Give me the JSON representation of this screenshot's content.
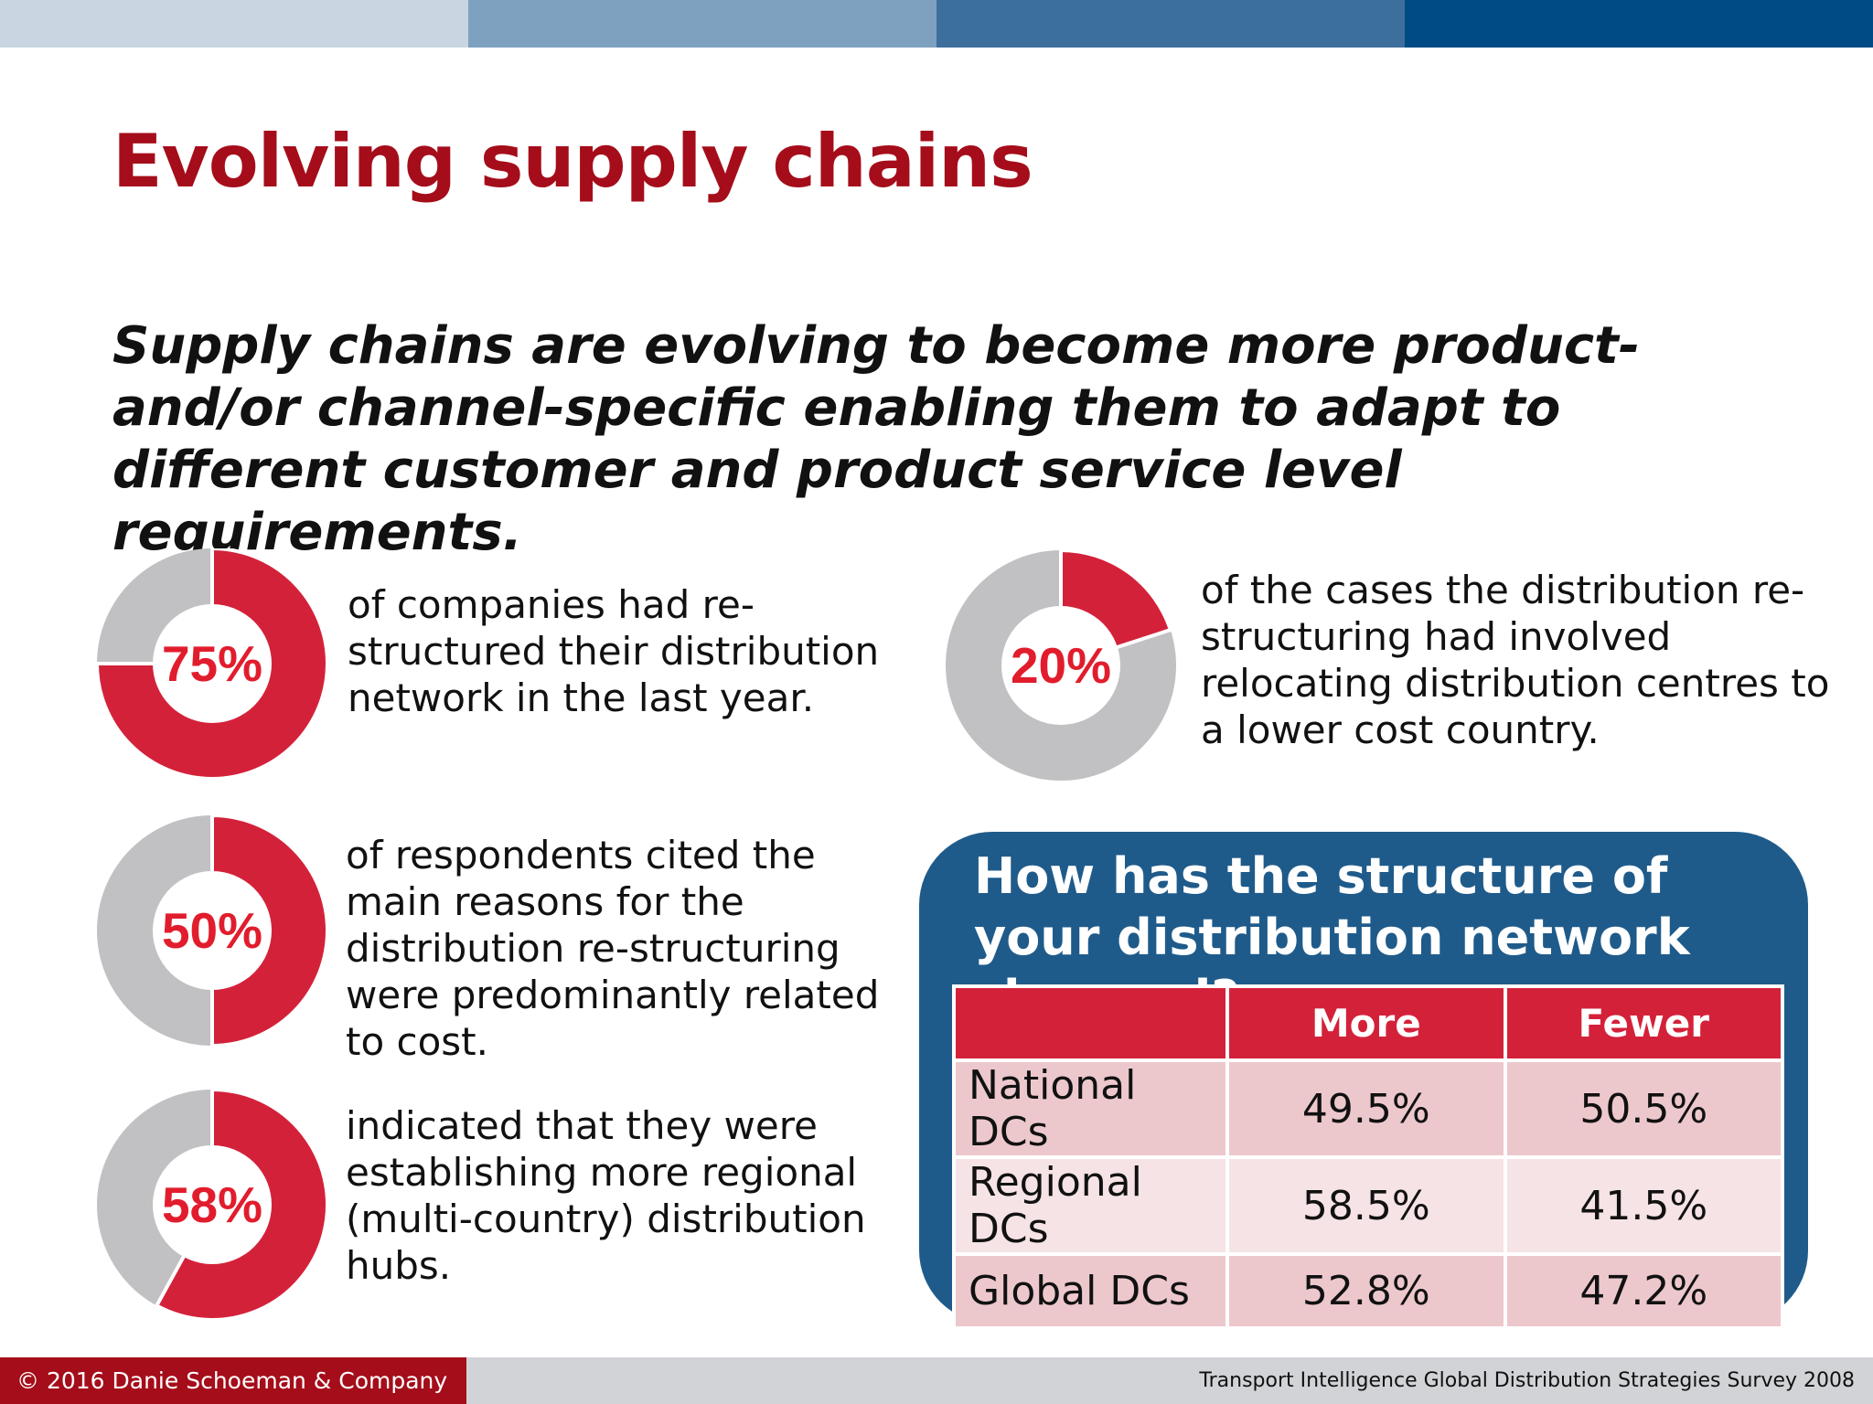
{
  "title": "Evolving supply chains",
  "subtitle": "Supply chains are evolving to become more product- and/or channel-specific enabling them to adapt to different customer and product service level requirements.",
  "colors": {
    "accent_red": "#d4213a",
    "donut_grey": "#c1c0c3",
    "title_red": "#a50d1a",
    "panel_blue": "#1f5b8a"
  },
  "stats": [
    {
      "label": "75%",
      "value": 75,
      "text": "of companies had re-structured their distribution network in the last year."
    },
    {
      "label": "20%",
      "value": 20,
      "text": "of the cases the distribution re-structuring had involved relocating distribution centres to a lower cost country."
    },
    {
      "label": "50%",
      "value": 50,
      "text": "of respondents cited the main reasons for the distribution re-structuring were predominantly related to cost."
    },
    {
      "label": "58%",
      "value": 58,
      "text": "indicated that they were establishing more regional (multi-country) distribution hubs."
    }
  ],
  "panel": {
    "title": "How has the structure of your distribution network changed?",
    "headers": [
      "",
      "More",
      "Fewer"
    ],
    "rows": [
      {
        "label": "National DCs",
        "more": "49.5%",
        "fewer": "50.5%"
      },
      {
        "label": "Regional DCs",
        "more": "58.5%",
        "fewer": "41.5%"
      },
      {
        "label": "Global DCs",
        "more": "52.8%",
        "fewer": "47.2%"
      }
    ]
  },
  "footer": {
    "copyright": "© 2016 Danie Schoeman & Company",
    "source": "Transport Intelligence Global Distribution Strategies Survey 2008"
  }
}
